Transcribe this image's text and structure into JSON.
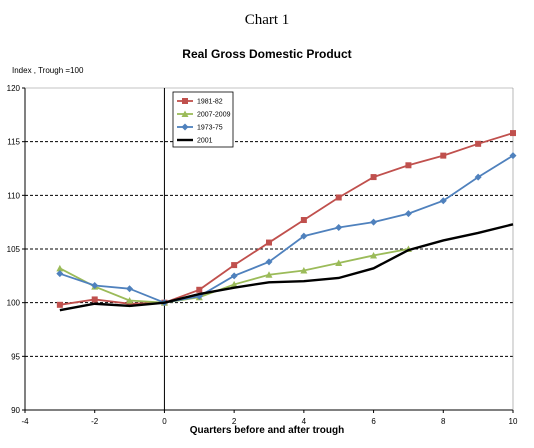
{
  "chart_data": {
    "type": "line",
    "supertitle": "Chart 1",
    "title": "Real Gross Domestic Product",
    "ylabel": "Index , Trough =100",
    "xlabel": "Quarters before and after trough",
    "xlim": [
      -4,
      10
    ],
    "ylim": [
      90,
      120
    ],
    "xticks": [
      -4,
      -2,
      0,
      2,
      4,
      6,
      8,
      10
    ],
    "yticks": [
      90,
      95,
      100,
      105,
      110,
      115,
      120
    ],
    "grid": "horizontal dashed",
    "legend_position": "upper-left inside plot",
    "series": [
      {
        "name": "1981-82",
        "color": "#c0504d",
        "marker": "square",
        "x": [
          -3,
          -2,
          -1,
          0,
          1,
          2,
          3,
          4,
          5,
          6,
          7,
          8,
          9,
          10
        ],
        "values": [
          99.8,
          100.3,
          99.9,
          100.0,
          101.2,
          103.5,
          105.6,
          107.7,
          109.8,
          111.7,
          112.8,
          113.7,
          114.8,
          115.8
        ]
      },
      {
        "name": "2007-2009",
        "color": "#9bbb59",
        "marker": "triangle",
        "x": [
          -3,
          -2,
          -1,
          0,
          1,
          2,
          3,
          4,
          5,
          6,
          7
        ],
        "values": [
          103.2,
          101.5,
          100.2,
          100.0,
          100.5,
          101.7,
          102.6,
          103.0,
          103.7,
          104.4,
          105.0
        ]
      },
      {
        "name": "1973-75",
        "color": "#4f81bd",
        "marker": "diamond",
        "x": [
          -3,
          -2,
          -1,
          0,
          1,
          2,
          3,
          4,
          5,
          6,
          7,
          8,
          9,
          10
        ],
        "values": [
          102.7,
          101.6,
          101.3,
          100.0,
          100.6,
          102.5,
          103.8,
          106.2,
          107.0,
          107.5,
          108.3,
          109.5,
          111.7,
          113.7
        ]
      },
      {
        "name": "2001",
        "color": "#000000",
        "marker": "none",
        "x": [
          -3,
          -2,
          -1,
          0,
          1,
          2,
          3,
          4,
          5,
          6,
          7,
          8,
          9,
          10
        ],
        "values": [
          99.3,
          99.9,
          99.7,
          100.0,
          100.8,
          101.4,
          101.9,
          102.0,
          102.3,
          103.2,
          104.9,
          105.8,
          106.5,
          107.3
        ]
      }
    ]
  }
}
